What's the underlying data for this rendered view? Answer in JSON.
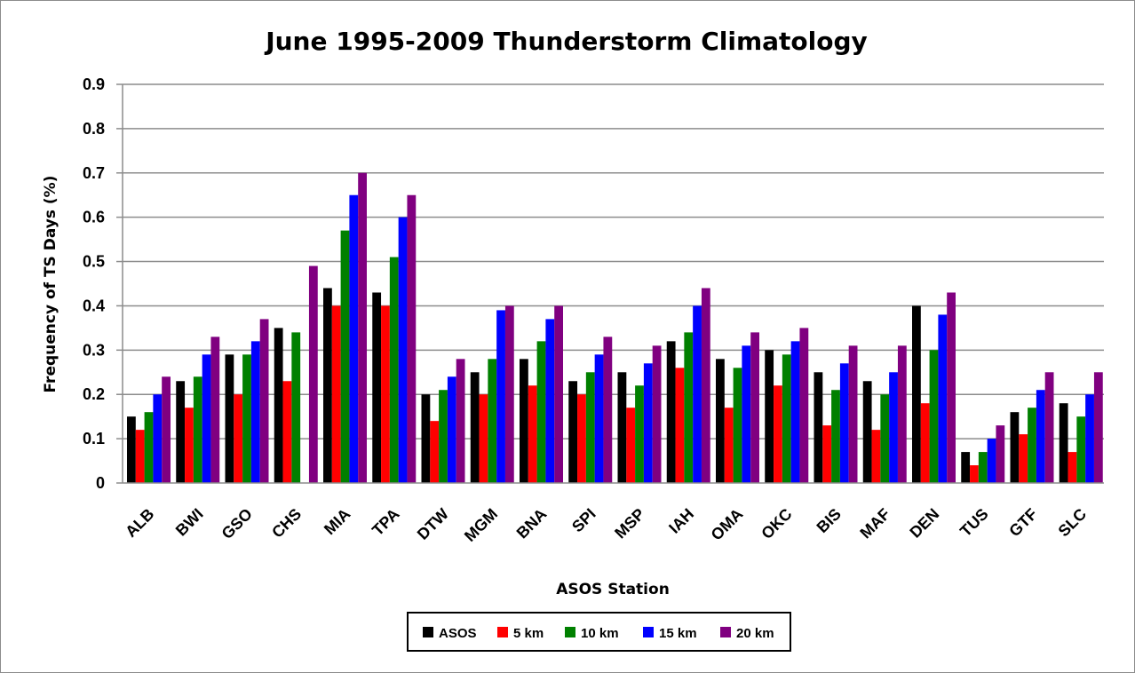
{
  "chart_data": {
    "type": "bar",
    "title": "June 1995-2009 Thunderstorm Climatology",
    "xlabel": "ASOS Station",
    "ylabel": "Frequency of TS Days (%)",
    "ylim": [
      0,
      0.9
    ],
    "yticks": [
      "0",
      "0.1",
      "0.2",
      "0.3",
      "0.4",
      "0.5",
      "0.6",
      "0.7",
      "0.8",
      "0.9"
    ],
    "grid": "horizontal",
    "legend_position": "bottom",
    "categories": [
      "ALB",
      "BWI",
      "GSO",
      "CHS",
      "MIA",
      "TPA",
      "DTW",
      "MGM",
      "BNA",
      "SPI",
      "MSP",
      "IAH",
      "OMA",
      "OKC",
      "BIS",
      "MAF",
      "DEN",
      "TUS",
      "GTF",
      "SLC"
    ],
    "series": [
      {
        "name": "ASOS",
        "color": "#000000",
        "values": [
          0.15,
          0.23,
          0.29,
          0.35,
          0.44,
          0.43,
          0.2,
          0.25,
          0.28,
          0.23,
          0.25,
          0.32,
          0.28,
          0.3,
          0.25,
          0.23,
          0.4,
          0.07,
          0.16,
          0.18
        ]
      },
      {
        "name": "5 km",
        "color": "#ff0000",
        "values": [
          0.12,
          0.17,
          0.2,
          0.23,
          0.4,
          0.4,
          0.14,
          0.2,
          0.22,
          0.2,
          0.17,
          0.26,
          0.17,
          0.22,
          0.13,
          0.12,
          0.18,
          0.04,
          0.11,
          0.07
        ]
      },
      {
        "name": "10 km",
        "color": "#008000",
        "values": [
          0.16,
          0.24,
          0.29,
          0.34,
          0.57,
          0.51,
          0.21,
          0.28,
          0.32,
          0.25,
          0.22,
          0.34,
          0.26,
          0.29,
          0.21,
          0.2,
          0.3,
          0.07,
          0.17,
          0.15
        ]
      },
      {
        "name": "15 km",
        "color": "#0000ff",
        "values": [
          0.2,
          0.29,
          0.32,
          0.0,
          0.65,
          0.6,
          0.24,
          0.39,
          0.37,
          0.29,
          0.27,
          0.4,
          0.31,
          0.32,
          0.27,
          0.25,
          0.38,
          0.1,
          0.21,
          0.2
        ]
      },
      {
        "name": "20 km",
        "color": "#800080",
        "values": [
          0.24,
          0.33,
          0.37,
          0.49,
          0.7,
          0.65,
          0.28,
          0.4,
          0.4,
          0.33,
          0.31,
          0.44,
          0.34,
          0.35,
          0.31,
          0.31,
          0.43,
          0.13,
          0.25,
          0.25
        ]
      }
    ]
  }
}
